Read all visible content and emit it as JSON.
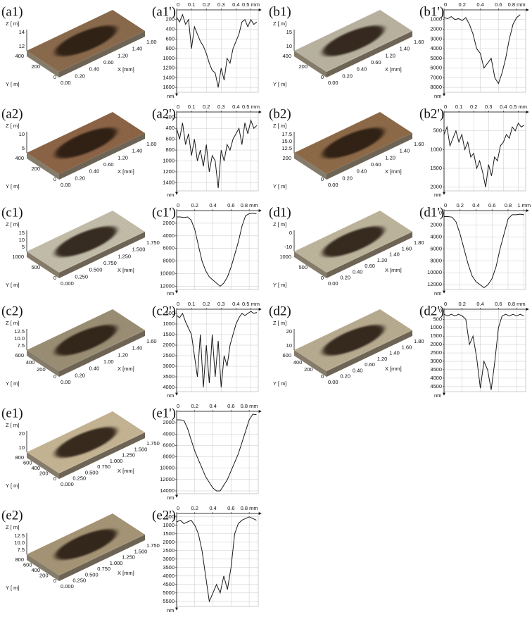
{
  "surface_images": [
    {
      "label": "(a1)",
      "surface_color": "#8a6a4c",
      "z_label": "Z [ m]",
      "z_ticks": [
        "14",
        "12"
      ],
      "y_label": "Y [ m]",
      "y_ticks": [
        "400",
        "200",
        "0"
      ],
      "x_label": "X [mm]",
      "x_ticks": [
        "0.00",
        "0.20",
        "0.40",
        "0.60",
        "1.20",
        "1.40",
        "1.60"
      ]
    },
    {
      "label": "(b1)",
      "surface_color": "#b9b2a0",
      "z_label": "Z [ m]",
      "z_ticks": [
        "15",
        "10"
      ],
      "y_label": "Y [ m]",
      "y_ticks": [
        "400",
        "200",
        "0"
      ],
      "x_label": "X [mm]",
      "x_ticks": [
        "0.00",
        "0.20",
        "0.40",
        "0.60",
        "1.20",
        "1.40",
        "1.60"
      ]
    },
    {
      "label": "(a2)",
      "surface_color": "#8c6446",
      "z_label": "Z [ m]",
      "z_ticks": [
        "10",
        "5"
      ],
      "y_label": "Y [ m]",
      "y_ticks": [
        "400",
        "200",
        "0"
      ],
      "x_label": "X [mm]",
      "x_ticks": [
        "0.00",
        "0.20",
        "0.40",
        "0.60",
        "1.20",
        "1.40",
        "1.60"
      ]
    },
    {
      "label": "(b2)",
      "surface_color": "#8d6a48",
      "z_label": "Z [ m]",
      "z_ticks": [
        "17.5",
        "15.0",
        "12.5"
      ],
      "y_label": "Y [ m]",
      "y_ticks": [
        "200",
        "0"
      ],
      "x_label": "X [mm]",
      "x_ticks": [
        "0.00",
        "0.20",
        "0.40",
        "0.60",
        "1.20",
        "1.40",
        "1.60"
      ]
    },
    {
      "label": "(c1)",
      "surface_color": "#c2bca9",
      "z_label": "Z [ m]",
      "z_ticks": [
        "15",
        "10",
        "5"
      ],
      "y_label": "Y [ m]",
      "y_ticks": [
        "1000",
        "500",
        "0"
      ],
      "x_label": "X [mm]",
      "x_ticks": [
        "0.000",
        "0.250",
        "0.500",
        "0.750",
        "1.250",
        "1.500",
        "1.750"
      ]
    },
    {
      "label": "(d1)",
      "surface_color": "#bdb49c",
      "z_label": "Z [ m]",
      "z_ticks": [
        "0",
        "-10"
      ],
      "y_label": "Y [ m]",
      "y_ticks": [
        "1000",
        "500",
        "0"
      ],
      "x_label": "X [mm]",
      "x_ticks": [
        "0.00",
        "0.20",
        "0.40",
        "0.60",
        "1.20",
        "1.40",
        "1.60",
        "1.80"
      ]
    },
    {
      "label": "(c2)",
      "surface_color": "#9a8e74",
      "z_label": "Z [ m]",
      "z_ticks": [
        "12.5",
        "10.0",
        "7.5"
      ],
      "y_label": "Y [ m]",
      "y_ticks": [
        "600",
        "400",
        "200",
        "0"
      ],
      "x_label": "X [mm]",
      "x_ticks": [
        "0.00",
        "0.20",
        "0.40",
        "1.00",
        "1.20",
        "1.40",
        "1.60"
      ]
    },
    {
      "label": "(d2)",
      "surface_color": "#b7ab90",
      "z_label": "Z [ m]",
      "z_ticks": [
        "20",
        "10"
      ],
      "y_label": "Y [ m]",
      "y_ticks": [
        "600",
        "400",
        "200",
        "0"
      ],
      "x_label": "X [mm]",
      "x_ticks": [
        "0.00",
        "0.20",
        "0.40",
        "0.60",
        "1.20",
        "1.40",
        "1.60",
        "1.80"
      ]
    },
    {
      "label": "(e1)",
      "surface_color": "#c4b493",
      "z_label": "Z [ m]",
      "z_ticks": [
        "20",
        "10"
      ],
      "y_label": "Y [ m]",
      "y_ticks": [
        "800",
        "600",
        "400",
        "200",
        "0"
      ],
      "x_label": "X [mm]",
      "x_ticks": [
        "0.000",
        "0.250",
        "0.500",
        "0.750",
        "1.000",
        "1.250",
        "1.500",
        "1.750"
      ]
    },
    {
      "label": "(e2)",
      "surface_color": "#a59576",
      "z_label": "Z [ m]",
      "z_ticks": [
        "12.5",
        "10.0",
        "7.5"
      ],
      "y_label": "Y [ m]",
      "y_ticks": [
        "800",
        "600",
        "400",
        "200",
        "0"
      ],
      "x_label": "X [mm]",
      "x_ticks": [
        "0.000",
        "0.250",
        "0.500",
        "0.750",
        "1.000",
        "1.250",
        "1.500",
        "1.750"
      ]
    }
  ],
  "chart_data": [
    {
      "type": "line",
      "title": "(a1')",
      "color": "#1a1a1a",
      "grid": true,
      "y_inverted": true,
      "ylabel": "nm",
      "x": [
        0,
        0.02,
        0.04,
        0.06,
        0.08,
        0.1,
        0.12,
        0.14,
        0.16,
        0.18,
        0.2,
        0.22,
        0.24,
        0.26,
        0.28,
        0.3,
        0.32,
        0.34,
        0.36,
        0.38,
        0.4,
        0.42,
        0.44,
        0.46,
        0.48,
        0.5,
        0.52,
        0.54
      ],
      "values": [
        150,
        250,
        100,
        300,
        200,
        800,
        350,
        500,
        650,
        750,
        900,
        1100,
        1250,
        1300,
        1600,
        1200,
        1450,
        1000,
        1100,
        800,
        650,
        500,
        250,
        200,
        350,
        200,
        300,
        250
      ],
      "xlim": [
        0,
        0.55
      ],
      "xticks": [
        0,
        0.1,
        0.2,
        0.3,
        0.4,
        {
          "value": 0.5,
          "label": "0.5 mm"
        }
      ],
      "ylim": [
        0,
        1700
      ],
      "yticks": [
        200,
        400,
        600,
        800,
        1000,
        1200,
        1400,
        1600
      ]
    },
    {
      "type": "line",
      "title": "(b1')",
      "color": "#1a1a1a",
      "grid": true,
      "y_inverted": true,
      "ylabel": "nm",
      "x": [
        0,
        0.04,
        0.08,
        0.12,
        0.16,
        0.2,
        0.24,
        0.28,
        0.32,
        0.36,
        0.4,
        0.44,
        0.48,
        0.52,
        0.56,
        0.6,
        0.64,
        0.68,
        0.72,
        0.76,
        0.8,
        0.84
      ],
      "values": [
        800,
        900,
        700,
        1000,
        900,
        1100,
        800,
        1500,
        2500,
        4000,
        4500,
        6000,
        5500,
        5000,
        7000,
        7600,
        6500,
        5000,
        3000,
        1500,
        800,
        500
      ],
      "xlim": [
        0,
        0.9
      ],
      "xticks": [
        0,
        0.2,
        0.4,
        0.6,
        {
          "value": 0.8,
          "label": "0.8 mm"
        }
      ],
      "ylim": [
        0,
        8500
      ],
      "yticks": [
        1000,
        2000,
        3000,
        4000,
        5000,
        6000,
        7000,
        8000
      ]
    },
    {
      "type": "line",
      "title": "(a2')",
      "color": "#1a1a1a",
      "grid": true,
      "y_inverted": true,
      "ylabel": "nm",
      "x": [
        0,
        0.02,
        0.04,
        0.06,
        0.08,
        0.1,
        0.12,
        0.14,
        0.16,
        0.18,
        0.2,
        0.22,
        0.24,
        0.26,
        0.28,
        0.3,
        0.32,
        0.34,
        0.36,
        0.38,
        0.4,
        0.42,
        0.44,
        0.46,
        0.48,
        0.5,
        0.52,
        0.54
      ],
      "values": [
        400,
        600,
        300,
        700,
        500,
        900,
        600,
        1000,
        800,
        1100,
        700,
        1200,
        900,
        1000,
        1500,
        800,
        1000,
        700,
        800,
        600,
        500,
        400,
        700,
        300,
        500,
        250,
        400,
        350
      ],
      "xlim": [
        0,
        0.55
      ],
      "xticks": [
        0,
        0.1,
        0.2,
        0.3,
        0.4,
        {
          "value": 0.5,
          "label": "0.5 mm"
        }
      ],
      "ylim": [
        100,
        1550
      ],
      "yticks": [
        200,
        400,
        600,
        800,
        1000,
        1200,
        1400
      ]
    },
    {
      "type": "line",
      "title": "(b2')",
      "color": "#1a1a1a",
      "grid": true,
      "y_inverted": true,
      "ylabel": "nm",
      "x": [
        0,
        0.02,
        0.04,
        0.06,
        0.08,
        0.1,
        0.12,
        0.14,
        0.16,
        0.18,
        0.2,
        0.22,
        0.24,
        0.26,
        0.28,
        0.3,
        0.32,
        0.34,
        0.36,
        0.38,
        0.4,
        0.42,
        0.44,
        0.46,
        0.48,
        0.5,
        0.52,
        0.54
      ],
      "values": [
        600,
        400,
        900,
        700,
        500,
        800,
        600,
        1000,
        800,
        1200,
        1100,
        1500,
        1300,
        1600,
        2000,
        1400,
        1700,
        1200,
        1300,
        900,
        800,
        600,
        700,
        400,
        500,
        300,
        400,
        350
      ],
      "xlim": [
        0,
        0.55
      ],
      "xticks": [
        0,
        0.1,
        0.2,
        0.3,
        0.4,
        {
          "value": 0.5,
          "label": "0.5 mm"
        }
      ],
      "ylim": [
        0,
        2100
      ],
      "yticks": [
        500,
        1000,
        1500,
        2000
      ]
    },
    {
      "type": "line",
      "title": "(c1')",
      "color": "#1a1a1a",
      "grid": true,
      "y_inverted": true,
      "ylabel": "nm",
      "x": [
        0,
        0.04,
        0.08,
        0.12,
        0.16,
        0.2,
        0.24,
        0.28,
        0.32,
        0.36,
        0.4,
        0.44,
        0.48,
        0.52,
        0.56,
        0.6,
        0.64,
        0.68,
        0.72,
        0.76,
        0.8,
        0.84,
        0.88
      ],
      "values": [
        1000,
        1000,
        1100,
        1000,
        1500,
        3000,
        5500,
        8000,
        9500,
        10500,
        11000,
        11500,
        12000,
        11500,
        10500,
        9000,
        7000,
        5000,
        2500,
        800,
        500,
        400,
        500
      ],
      "xlim": [
        0,
        0.9
      ],
      "xticks": [
        0,
        0.2,
        0.4,
        0.6,
        {
          "value": 0.8,
          "label": "0.8 mm"
        }
      ],
      "ylim": [
        0,
        12500
      ],
      "yticks": [
        2000,
        4000,
        6000,
        8000,
        10000,
        12000
      ]
    },
    {
      "type": "line",
      "title": "(d1')",
      "color": "#1a1a1a",
      "grid": true,
      "y_inverted": true,
      "ylabel": "nm",
      "x": [
        0,
        0.05,
        0.1,
        0.15,
        0.2,
        0.25,
        0.3,
        0.35,
        0.4,
        0.45,
        0.5,
        0.55,
        0.6,
        0.65,
        0.7,
        0.75,
        0.8,
        0.85,
        0.9,
        0.95,
        1
      ],
      "values": [
        600,
        600,
        700,
        1500,
        3500,
        6000,
        8500,
        10500,
        11500,
        12000,
        12500,
        12000,
        11000,
        9000,
        6000,
        3500,
        1000,
        300,
        300,
        200,
        300
      ],
      "xlim": [
        0,
        1.02
      ],
      "xticks": [
        0,
        0.2,
        0.4,
        0.6,
        0.8,
        {
          "value": 1,
          "label": "1 mm"
        }
      ],
      "ylim": [
        -400,
        12800
      ],
      "yticks": [
        0,
        2000,
        4000,
        6000,
        8000,
        10000,
        12000
      ]
    },
    {
      "type": "line",
      "title": "(c2')",
      "color": "#1a1a1a",
      "grid": true,
      "y_inverted": true,
      "ylabel": "nm",
      "x": [
        0,
        0.02,
        0.04,
        0.06,
        0.08,
        0.1,
        0.12,
        0.14,
        0.16,
        0.18,
        0.2,
        0.22,
        0.24,
        0.26,
        0.28,
        0.3,
        0.32,
        0.34,
        0.36,
        0.38,
        0.4,
        0.42,
        0.44,
        0.46,
        0.48,
        0.5,
        0.52,
        0.54
      ],
      "values": [
        600,
        700,
        500,
        900,
        1200,
        1500,
        2500,
        3500,
        1500,
        4000,
        2000,
        3800,
        1500,
        3500,
        1800,
        4000,
        2500,
        3000,
        2000,
        1500,
        1000,
        700,
        500,
        600,
        500,
        400,
        500,
        450
      ],
      "xlim": [
        0,
        0.55
      ],
      "xticks": [
        0,
        0.1,
        0.2,
        0.3,
        0.4,
        {
          "value": 0.5,
          "label": "0.5 mm"
        }
      ],
      "ylim": [
        300,
        4200
      ],
      "yticks": [
        500,
        1000,
        1500,
        2000,
        2500,
        3000,
        3500,
        4000
      ]
    },
    {
      "type": "line",
      "title": "(d2')",
      "color": "#1a1a1a",
      "grid": true,
      "y_inverted": true,
      "ylabel": "nm",
      "x": [
        0,
        0.04,
        0.08,
        0.12,
        0.16,
        0.2,
        0.24,
        0.28,
        0.32,
        0.36,
        0.4,
        0.44,
        0.48,
        0.52,
        0.56,
        0.6,
        0.64,
        0.68,
        0.72,
        0.76,
        0.8,
        0.84,
        0.88
      ],
      "values": [
        200,
        300,
        200,
        300,
        200,
        300,
        500,
        2000,
        1500,
        2800,
        4600,
        3000,
        3500,
        4700,
        3000,
        1000,
        300,
        200,
        300,
        200,
        300,
        200,
        300
      ],
      "xlim": [
        0,
        0.9
      ],
      "xticks": [
        0,
        0.2,
        0.4,
        0.6,
        {
          "value": 0.8,
          "label": "0.8 mm"
        }
      ],
      "ylim": [
        -100,
        4800
      ],
      "yticks": [
        0,
        500,
        1000,
        1500,
        2000,
        2500,
        3000,
        3500,
        4000,
        4500
      ]
    },
    {
      "type": "line",
      "title": "(e1')",
      "color": "#1a1a1a",
      "grid": true,
      "y_inverted": true,
      "ylabel": "nm",
      "x": [
        0,
        0.04,
        0.08,
        0.12,
        0.16,
        0.2,
        0.24,
        0.28,
        0.32,
        0.36,
        0.4,
        0.44,
        0.48,
        0.52,
        0.56,
        0.6,
        0.64,
        0.68,
        0.72,
        0.76,
        0.8,
        0.84,
        0.88
      ],
      "values": [
        1500,
        1500,
        1600,
        3000,
        5000,
        7000,
        8500,
        10000,
        11500,
        12500,
        13500,
        14000,
        14000,
        13000,
        12000,
        10500,
        9000,
        7500,
        5500,
        3500,
        1500,
        500,
        600
      ],
      "xlim": [
        0,
        0.9
      ],
      "xticks": [
        0,
        0.2,
        0.4,
        0.6,
        {
          "value": 0.8,
          "label": "0.8 mm"
        }
      ],
      "ylim": [
        0,
        14500
      ],
      "yticks": [
        2000,
        4000,
        6000,
        8000,
        10000,
        12000,
        14000
      ]
    },
    {
      "type": "line",
      "title": "(e2')",
      "color": "#1a1a1a",
      "grid": true,
      "y_inverted": true,
      "ylabel": "nm",
      "x": [
        0,
        0.04,
        0.08,
        0.12,
        0.16,
        0.2,
        0.24,
        0.28,
        0.32,
        0.36,
        0.4,
        0.44,
        0.48,
        0.52,
        0.56,
        0.6,
        0.64,
        0.68,
        0.72,
        0.76,
        0.8,
        0.84,
        0.88
      ],
      "values": [
        800,
        700,
        900,
        800,
        700,
        1000,
        1500,
        2500,
        4000,
        5500,
        5000,
        4500,
        5000,
        4000,
        4800,
        3500,
        1500,
        900,
        700,
        600,
        500,
        600,
        700
      ],
      "xlim": [
        0,
        0.9
      ],
      "xticks": [
        0,
        0.2,
        0.4,
        0.6,
        {
          "value": 0.8,
          "label": "0.8 mm"
        }
      ],
      "ylim": [
        300,
        5800
      ],
      "yticks": [
        500,
        1000,
        1500,
        2000,
        2500,
        3000,
        3500,
        4000,
        4500,
        5000,
        5500
      ]
    }
  ]
}
